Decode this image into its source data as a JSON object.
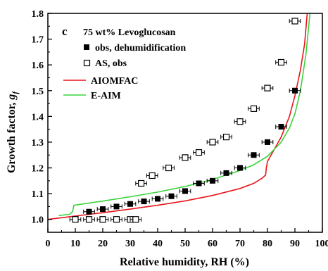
{
  "chart_data": {
    "type": "scatter",
    "panel_label": "c",
    "title": "75 wt% Levoglucosan",
    "xlabel": "Relative humidity, RH (%)",
    "ylabel_main": "Growth factor, ",
    "ylabel_symbol": "g",
    "ylabel_subscript": "f",
    "xlim": [
      0,
      100
    ],
    "ylim": [
      0.95,
      1.8
    ],
    "x_ticks": [
      0,
      10,
      20,
      30,
      40,
      50,
      60,
      70,
      80,
      90,
      100
    ],
    "x_tick_labels": [
      "0",
      "10",
      "20",
      "30",
      "40",
      "50",
      "60",
      "70",
      "80",
      "90",
      "100"
    ],
    "y_ticks": [
      1.0,
      1.1,
      1.2,
      1.3,
      1.4,
      1.5,
      1.6,
      1.7,
      1.8
    ],
    "y_tick_labels": [
      "1.0",
      "1.1",
      "1.2",
      "1.3",
      "1.4",
      "1.5",
      "1.6",
      "1.7",
      "1.8"
    ],
    "series": [
      {
        "name": "obs, dehumidification",
        "marker": "filled-square",
        "color": "#000000",
        "x_error": 2,
        "points": [
          [
            15,
            1.03
          ],
          [
            20,
            1.04
          ],
          [
            25,
            1.05
          ],
          [
            30,
            1.06
          ],
          [
            35,
            1.07
          ],
          [
            40,
            1.08
          ],
          [
            45,
            1.09
          ],
          [
            50,
            1.11
          ],
          [
            55,
            1.14
          ],
          [
            60,
            1.15
          ],
          [
            65,
            1.18
          ],
          [
            70,
            1.2
          ],
          [
            75,
            1.25
          ],
          [
            80,
            1.3
          ],
          [
            85,
            1.36
          ],
          [
            90,
            1.5
          ]
        ]
      },
      {
        "name": "AS, obs",
        "marker": "open-square",
        "color": "#000000",
        "x_error": 2,
        "points": [
          [
            10,
            1.0
          ],
          [
            15,
            1.0
          ],
          [
            20,
            1.0
          ],
          [
            25,
            1.0
          ],
          [
            30,
            1.0
          ],
          [
            32,
            1.0
          ],
          [
            34,
            1.14
          ],
          [
            38,
            1.17
          ],
          [
            44,
            1.2
          ],
          [
            50,
            1.24
          ],
          [
            55,
            1.26
          ],
          [
            60,
            1.3
          ],
          [
            65,
            1.32
          ],
          [
            70,
            1.38
          ],
          [
            75,
            1.43
          ],
          [
            80,
            1.51
          ],
          [
            85,
            1.61
          ],
          [
            90,
            1.77
          ]
        ]
      },
      {
        "name": "AIOMFAC",
        "type": "line",
        "color": "#e8151b",
        "points": [
          [
            0,
            1.0
          ],
          [
            10,
            1.013
          ],
          [
            20,
            1.026
          ],
          [
            30,
            1.04
          ],
          [
            40,
            1.055
          ],
          [
            50,
            1.072
          ],
          [
            60,
            1.093
          ],
          [
            70,
            1.12
          ],
          [
            75,
            1.14
          ],
          [
            78,
            1.16
          ],
          [
            79.3,
            1.172
          ],
          [
            79.6,
            1.2
          ],
          [
            80,
            1.225
          ],
          [
            85,
            1.32
          ],
          [
            88,
            1.4
          ],
          [
            90,
            1.48
          ],
          [
            92,
            1.58
          ],
          [
            93.5,
            1.68
          ],
          [
            94.5,
            1.8
          ]
        ]
      },
      {
        "name": "E-AIM",
        "type": "line",
        "color": "#3bd43b",
        "points": [
          [
            4,
            1.015
          ],
          [
            8,
            1.02
          ],
          [
            9,
            1.03
          ],
          [
            9.5,
            1.055
          ],
          [
            20,
            1.071
          ],
          [
            30,
            1.088
          ],
          [
            40,
            1.106
          ],
          [
            50,
            1.128
          ],
          [
            60,
            1.155
          ],
          [
            70,
            1.19
          ],
          [
            75,
            1.212
          ],
          [
            80,
            1.245
          ],
          [
            85,
            1.3
          ],
          [
            88,
            1.355
          ],
          [
            90,
            1.41
          ],
          [
            92,
            1.5
          ],
          [
            94,
            1.64
          ],
          [
            95.5,
            1.8
          ]
        ]
      }
    ],
    "legend_placement": "top-left",
    "grid": false
  }
}
